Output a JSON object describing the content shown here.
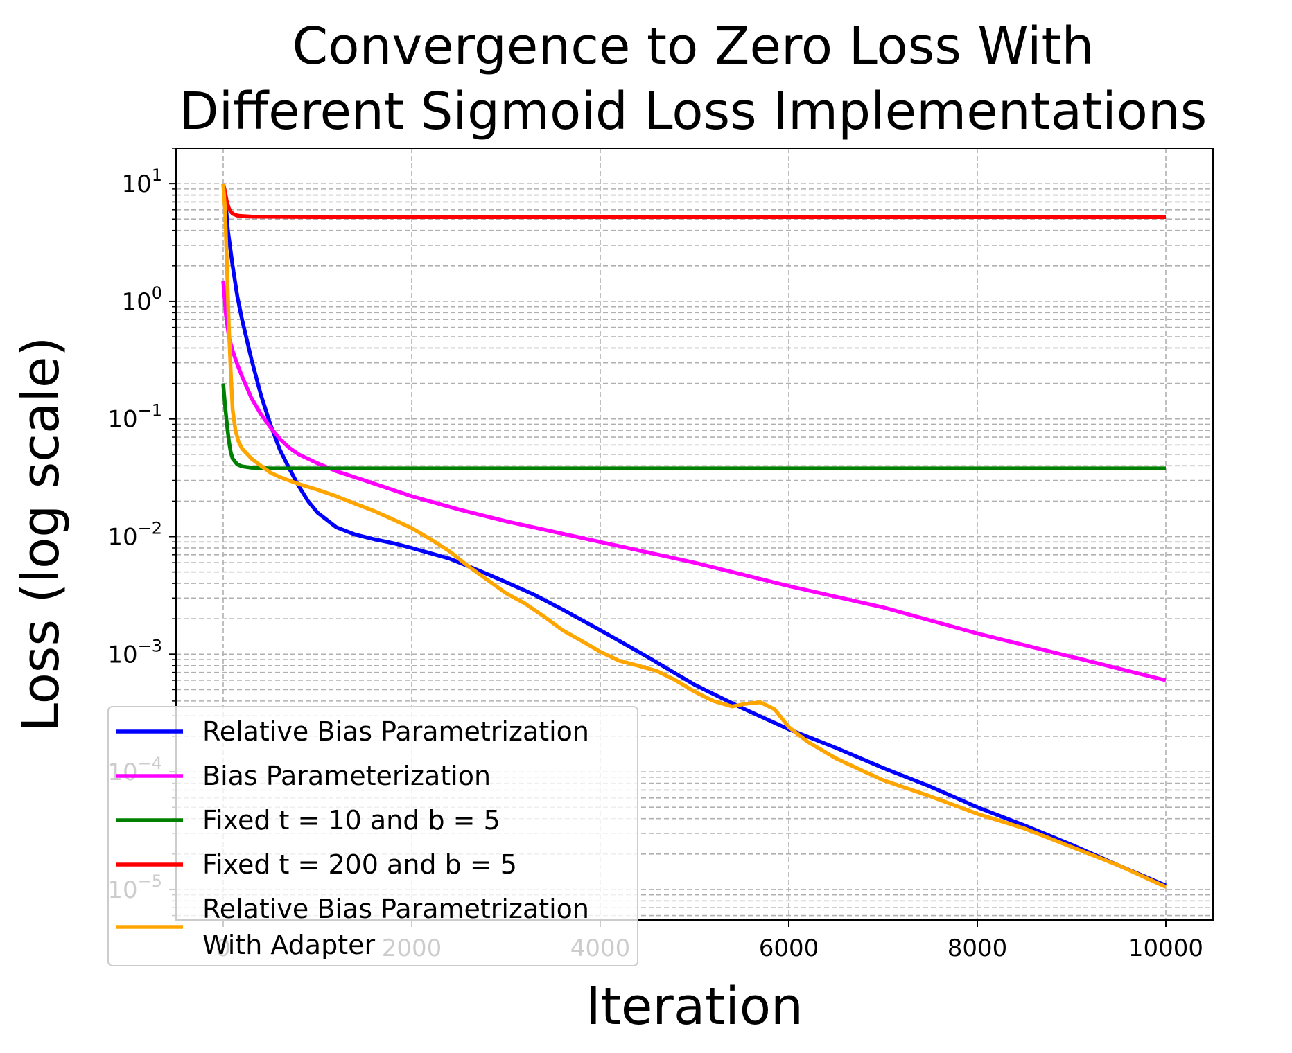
{
  "chart_data": {
    "type": "line",
    "title": "Convergence to Zero Loss With\nDifferent Sigmoid Loss Implementations",
    "xlabel": "Iteration",
    "ylabel": "Loss (log scale)",
    "yscale": "log",
    "xlim": [
      -500,
      10500
    ],
    "ylim": [
      5.5e-06,
      20
    ],
    "xticks": [
      0,
      2000,
      4000,
      6000,
      8000,
      10000
    ],
    "yticks": [
      {
        "base": "10",
        "exp": "1",
        "value": 10
      },
      {
        "base": "10",
        "exp": "0",
        "value": 1
      },
      {
        "base": "10",
        "exp": "−1",
        "value": 0.1
      },
      {
        "base": "10",
        "exp": "−2",
        "value": 0.01
      },
      {
        "base": "10",
        "exp": "−3",
        "value": 0.001
      },
      {
        "base": "10",
        "exp": "−4",
        "value": 0.0001
      },
      {
        "base": "10",
        "exp": "−5",
        "value": 1e-05
      }
    ],
    "grid": true,
    "legend_position": "lower-left",
    "series": [
      {
        "name": "Relative Bias Parametrization",
        "color": "#0000ff",
        "points": [
          [
            0,
            10
          ],
          [
            20,
            8
          ],
          [
            50,
            4
          ],
          [
            100,
            2
          ],
          [
            150,
            1.1
          ],
          [
            200,
            0.7
          ],
          [
            300,
            0.32
          ],
          [
            400,
            0.16
          ],
          [
            500,
            0.09
          ],
          [
            600,
            0.055
          ],
          [
            700,
            0.038
          ],
          [
            800,
            0.027
          ],
          [
            900,
            0.02
          ],
          [
            1000,
            0.016
          ],
          [
            1200,
            0.012
          ],
          [
            1400,
            0.0104
          ],
          [
            1600,
            0.0095
          ],
          [
            1800,
            0.0088
          ],
          [
            2000,
            0.008
          ],
          [
            2200,
            0.0072
          ],
          [
            2400,
            0.0065
          ],
          [
            2600,
            0.0056
          ],
          [
            2800,
            0.0048
          ],
          [
            3000,
            0.0041
          ],
          [
            3300,
            0.0032
          ],
          [
            3600,
            0.0024
          ],
          [
            4000,
            0.0016
          ],
          [
            4500,
            0.00095
          ],
          [
            5000,
            0.00055
          ],
          [
            5500,
            0.00035
          ],
          [
            6000,
            0.00023
          ],
          [
            6500,
            0.00016
          ],
          [
            7000,
            0.000108
          ],
          [
            7500,
            7.5e-05
          ],
          [
            8000,
            5e-05
          ],
          [
            8500,
            3.5e-05
          ],
          [
            9000,
            2.4e-05
          ],
          [
            9500,
            1.6e-05
          ],
          [
            10000,
            1.08e-05
          ]
        ]
      },
      {
        "name": "Bias Parameterization",
        "color": "#ff00ff",
        "points": [
          [
            0,
            1.5
          ],
          [
            30,
            0.75
          ],
          [
            60,
            0.5
          ],
          [
            100,
            0.38
          ],
          [
            150,
            0.29
          ],
          [
            200,
            0.23
          ],
          [
            300,
            0.15
          ],
          [
            400,
            0.11
          ],
          [
            500,
            0.085
          ],
          [
            600,
            0.068
          ],
          [
            700,
            0.057
          ],
          [
            800,
            0.05
          ],
          [
            1000,
            0.042
          ],
          [
            1200,
            0.036
          ],
          [
            1500,
            0.03
          ],
          [
            2000,
            0.022
          ],
          [
            2500,
            0.017
          ],
          [
            3000,
            0.0135
          ],
          [
            4000,
            0.009
          ],
          [
            5000,
            0.006
          ],
          [
            6000,
            0.0038
          ],
          [
            7000,
            0.0025
          ],
          [
            8000,
            0.0015
          ],
          [
            9000,
            0.00095
          ],
          [
            10000,
            0.0006
          ]
        ]
      },
      {
        "name": "Fixed t = 10 and b = 5",
        "color": "#008000",
        "points": [
          [
            0,
            0.2
          ],
          [
            20,
            0.13
          ],
          [
            40,
            0.09
          ],
          [
            60,
            0.065
          ],
          [
            80,
            0.052
          ],
          [
            100,
            0.046
          ],
          [
            150,
            0.041
          ],
          [
            200,
            0.0395
          ],
          [
            300,
            0.0385
          ],
          [
            500,
            0.038
          ],
          [
            1000,
            0.038
          ],
          [
            10000,
            0.038
          ]
        ]
      },
      {
        "name": "Fixed t = 200 and b = 5",
        "color": "#ff0000",
        "points": [
          [
            0,
            10
          ],
          [
            20,
            8.5
          ],
          [
            40,
            7
          ],
          [
            60,
            6.2
          ],
          [
            80,
            5.8
          ],
          [
            100,
            5.55
          ],
          [
            150,
            5.35
          ],
          [
            200,
            5.3
          ],
          [
            300,
            5.25
          ],
          [
            1000,
            5.2
          ],
          [
            10000,
            5.2
          ]
        ]
      },
      {
        "name": "Relative Bias Parametrization\nWith Adapter",
        "color": "#ffa500",
        "points": [
          [
            0,
            10
          ],
          [
            20,
            6
          ],
          [
            40,
            2
          ],
          [
            60,
            0.6
          ],
          [
            80,
            0.25
          ],
          [
            100,
            0.12
          ],
          [
            130,
            0.08
          ],
          [
            160,
            0.065
          ],
          [
            200,
            0.056
          ],
          [
            300,
            0.046
          ],
          [
            400,
            0.04
          ],
          [
            500,
            0.035
          ],
          [
            600,
            0.032
          ],
          [
            800,
            0.028
          ],
          [
            1000,
            0.025
          ],
          [
            1200,
            0.022
          ],
          [
            1400,
            0.019
          ],
          [
            1600,
            0.0165
          ],
          [
            1800,
            0.014
          ],
          [
            2000,
            0.0118
          ],
          [
            2200,
            0.0095
          ],
          [
            2400,
            0.0075
          ],
          [
            2600,
            0.0056
          ],
          [
            2800,
            0.0043
          ],
          [
            3000,
            0.0033
          ],
          [
            3200,
            0.0027
          ],
          [
            3400,
            0.0021
          ],
          [
            3600,
            0.0016
          ],
          [
            3800,
            0.0013
          ],
          [
            4000,
            0.00105
          ],
          [
            4200,
            0.00088
          ],
          [
            4400,
            0.0008
          ],
          [
            4600,
            0.00072
          ],
          [
            4800,
            0.0006
          ],
          [
            5000,
            0.00048
          ],
          [
            5200,
            0.0004
          ],
          [
            5400,
            0.00036
          ],
          [
            5550,
            0.00038
          ],
          [
            5700,
            0.00039
          ],
          [
            5850,
            0.00034
          ],
          [
            6000,
            0.00024
          ],
          [
            6200,
            0.00018
          ],
          [
            6500,
            0.00013
          ],
          [
            7000,
            8.5e-05
          ],
          [
            7500,
            6.2e-05
          ],
          [
            8000,
            4.4e-05
          ],
          [
            8500,
            3.3e-05
          ],
          [
            9000,
            2.3e-05
          ],
          [
            9500,
            1.6e-05
          ],
          [
            10000,
            1.05e-05
          ]
        ]
      }
    ]
  }
}
